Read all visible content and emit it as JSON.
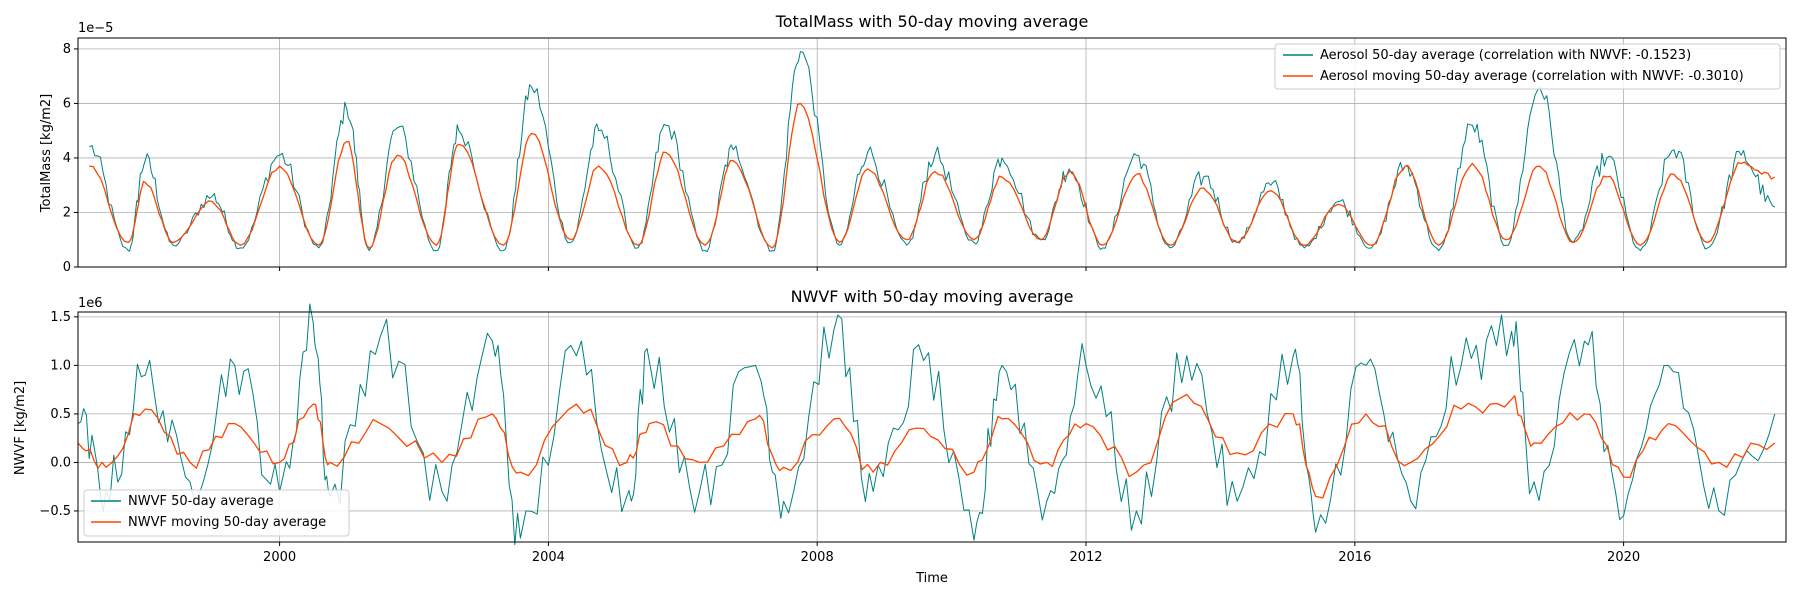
{
  "colors": {
    "raw": "#008080",
    "moving": "#ff4500",
    "grid": "#b0b0b0"
  },
  "x_ticks": [
    "2000",
    "2004",
    "2008",
    "2012",
    "2016",
    "2020"
  ],
  "xlabel": "Time",
  "chart_data": [
    {
      "type": "line",
      "title": "TotalMass with 50-day moving average",
      "ylabel": "TotalMass [kg/m2]",
      "y_offset_label": "1e−5",
      "yticks": [
        "0",
        "2",
        "4",
        "6",
        "8"
      ],
      "xlim": [
        "1997-01",
        "2022-06"
      ],
      "ylim": [
        0,
        8.4
      ],
      "grid": true,
      "legend_position": "top-right",
      "series": [
        {
          "name": "Aerosol 50-day average (correlation with NWVF: -0.1523)",
          "color": "#008080",
          "x": [
            "1997-03",
            "1997-10",
            "1998-01",
            "1998-06",
            "1999-01",
            "1999-06",
            "2000-01",
            "2000-08",
            "2001-01",
            "2001-05",
            "2001-10",
            "2002-05",
            "2002-09",
            "2003-05",
            "2003-10",
            "2004-05",
            "2004-10",
            "2005-05",
            "2005-10",
            "2006-05",
            "2006-10",
            "2007-05",
            "2007-10",
            "2008-05",
            "2008-10",
            "2009-05",
            "2009-10",
            "2010-05",
            "2010-10",
            "2011-05",
            "2011-10",
            "2012-04",
            "2012-10",
            "2013-04",
            "2013-10",
            "2014-04",
            "2014-10",
            "2015-04",
            "2015-10",
            "2016-04",
            "2016-10",
            "2017-04",
            "2017-10",
            "2018-04",
            "2018-10",
            "2019-04",
            "2019-10",
            "2020-04",
            "2020-10",
            "2021-04",
            "2021-10",
            "2022-04"
          ],
          "y": [
            4.4,
            0.6,
            3.9,
            0.8,
            2.6,
            0.7,
            4.1,
            0.7,
            5.8,
            0.6,
            5.1,
            0.6,
            5.0,
            0.6,
            6.6,
            0.9,
            5.0,
            0.7,
            5.2,
            0.6,
            4.3,
            0.6,
            7.9,
            0.8,
            4.2,
            0.8,
            4.1,
            0.9,
            4.0,
            1.0,
            3.6,
            0.7,
            4.1,
            0.7,
            3.3,
            0.9,
            3.0,
            0.7,
            2.4,
            0.7,
            3.7,
            0.6,
            5.2,
            0.8,
            6.6,
            0.9,
            4.0,
            0.6,
            4.3,
            0.7,
            4.1,
            2.2
          ]
        },
        {
          "name": "Aerosol moving 50-day average (correlation with NWVF: -0.3010)",
          "color": "#ff4500",
          "x": [
            "1997-03",
            "1997-10",
            "1998-01",
            "1998-06",
            "1999-01",
            "1999-06",
            "2000-01",
            "2000-08",
            "2001-01",
            "2001-05",
            "2001-10",
            "2002-05",
            "2002-09",
            "2003-05",
            "2003-10",
            "2004-05",
            "2004-10",
            "2005-05",
            "2005-10",
            "2006-05",
            "2006-10",
            "2007-05",
            "2007-10",
            "2008-05",
            "2008-10",
            "2009-05",
            "2009-10",
            "2010-05",
            "2010-10",
            "2011-05",
            "2011-10",
            "2012-04",
            "2012-10",
            "2013-04",
            "2013-10",
            "2014-04",
            "2014-10",
            "2015-04",
            "2015-10",
            "2016-04",
            "2016-10",
            "2017-04",
            "2017-10",
            "2018-04",
            "2018-10",
            "2019-04",
            "2019-10",
            "2020-04",
            "2020-10",
            "2021-04",
            "2021-10",
            "2022-04"
          ],
          "y": [
            3.7,
            0.9,
            3.1,
            0.9,
            2.4,
            0.8,
            3.7,
            0.8,
            4.6,
            0.7,
            4.1,
            0.8,
            4.5,
            0.8,
            4.9,
            1.0,
            3.7,
            0.8,
            4.2,
            0.8,
            3.9,
            0.7,
            6.0,
            0.9,
            3.6,
            1.0,
            3.5,
            1.0,
            3.3,
            1.0,
            3.5,
            0.8,
            3.4,
            0.8,
            2.9,
            0.9,
            2.8,
            0.8,
            2.3,
            0.8,
            3.7,
            0.8,
            3.8,
            1.0,
            3.7,
            0.9,
            3.3,
            0.8,
            3.4,
            0.9,
            3.8,
            3.3
          ]
        }
      ]
    },
    {
      "type": "line",
      "title": "NWVF with 50-day moving average",
      "ylabel": "NWVF [kg/m2]",
      "y_offset_label": "1e6",
      "yticks": [
        "−0.5",
        "0.0",
        "0.5",
        "1.0",
        "1.5"
      ],
      "xlim": [
        "1997-01",
        "2022-06"
      ],
      "ylim": [
        -0.82,
        1.55
      ],
      "grid": true,
      "legend_position": "bottom-left",
      "series": [
        {
          "name": "NWVF 50-day average",
          "color": "#008080",
          "x": [
            "1997-01",
            "1997-06",
            "1998-01",
            "1998-09",
            "1999-05",
            "2000-01",
            "2000-07",
            "2000-10",
            "2001-07",
            "2002-06",
            "2003-03",
            "2003-08",
            "2004-06",
            "2005-03",
            "2005-07",
            "2006-04",
            "2007-02",
            "2007-07",
            "2008-04",
            "2008-11",
            "2009-08",
            "2010-05",
            "2010-10",
            "2011-06",
            "2012-01",
            "2012-10",
            "2013-07",
            "2014-04",
            "2015-02",
            "2015-06",
            "2016-03",
            "2016-11",
            "2017-08",
            "2018-05",
            "2018-09",
            "2019-06",
            "2020-01",
            "2020-09",
            "2021-06",
            "2022-04"
          ],
          "y": [
            0.4,
            -0.3,
            0.9,
            -0.2,
            1.0,
            -0.3,
            1.44,
            -0.35,
            1.3,
            -0.3,
            1.25,
            -0.78,
            1.1,
            -0.35,
            1.05,
            -0.3,
            1.0,
            -0.4,
            1.37,
            -0.3,
            1.05,
            -0.8,
            1.0,
            -0.4,
            1.0,
            -0.5,
            1.1,
            -0.4,
            1.1,
            -0.72,
            1.0,
            -0.4,
            1.0,
            1.35,
            -0.2,
            1.25,
            -0.55,
            1.0,
            -0.5,
            0.5
          ]
        },
        {
          "name": "NWVF moving 50-day average",
          "color": "#ff4500",
          "x": [
            "1997-01",
            "1997-06",
            "1998-01",
            "1998-09",
            "1999-05",
            "2000-01",
            "2000-07",
            "2000-10",
            "2001-07",
            "2002-06",
            "2003-03",
            "2003-08",
            "2004-06",
            "2005-03",
            "2005-07",
            "2006-04",
            "2007-02",
            "2007-07",
            "2008-04",
            "2008-11",
            "2009-08",
            "2010-05",
            "2010-10",
            "2011-06",
            "2012-01",
            "2012-10",
            "2013-07",
            "2014-04",
            "2015-02",
            "2015-06",
            "2016-03",
            "2016-11",
            "2017-08",
            "2018-05",
            "2018-09",
            "2019-06",
            "2020-01",
            "2020-09",
            "2021-06",
            "2022-04"
          ],
          "y": [
            0.2,
            -0.05,
            0.55,
            0.0,
            0.4,
            0.0,
            0.6,
            0.0,
            0.4,
            0.0,
            0.5,
            -0.1,
            0.6,
            0.0,
            0.4,
            0.0,
            0.45,
            -0.05,
            0.45,
            -0.1,
            0.35,
            -0.1,
            0.45,
            0.0,
            0.4,
            -0.1,
            0.7,
            0.1,
            0.5,
            -0.35,
            0.5,
            0.0,
            0.55,
            0.65,
            0.2,
            0.5,
            -0.15,
            0.4,
            0.0,
            0.2
          ]
        }
      ]
    }
  ]
}
